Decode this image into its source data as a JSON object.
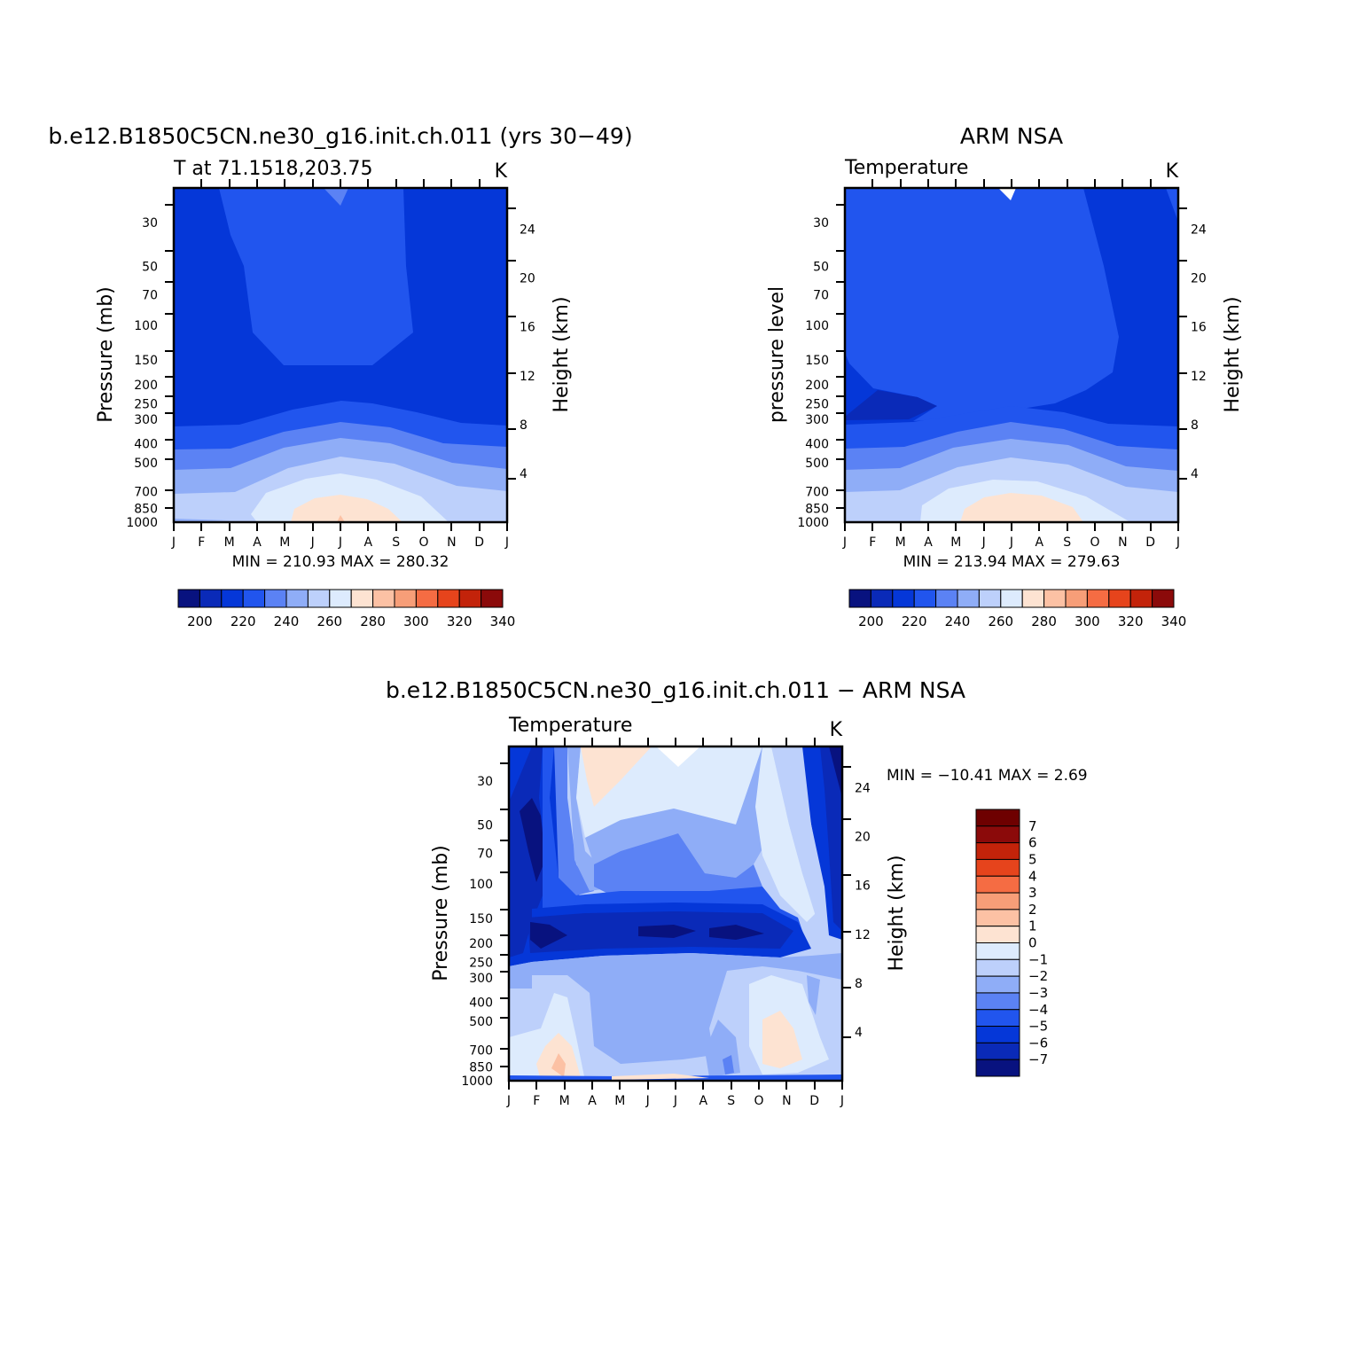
{
  "panels": [
    {
      "id": "model",
      "title": "b.e12.B1850C5CN.ne30_g16.init.ch.011 (yrs 30−49)",
      "left_string": "T at 71.1518,203.75",
      "right_string": "K",
      "ylabel_left": "Pressure (mb)",
      "ylabel_right": "Height (km)",
      "stats": "MIN = 210.93  MAX = 280.32"
    },
    {
      "id": "obs",
      "title": "ARM NSA",
      "left_string": "Temperature",
      "right_string": "K",
      "ylabel_left": "pressure level",
      "ylabel_right": "Height (km)",
      "stats": "MIN = 213.94  MAX = 279.63"
    },
    {
      "id": "diff",
      "title": "b.e12.B1850C5CN.ne30_g16.init.ch.011 − ARM NSA",
      "left_string": "Temperature",
      "right_string": "K",
      "ylabel_left": "Pressure (mb)",
      "ylabel_right": "Height (km)",
      "stats": "MIN = −10.41  MAX =    2.69"
    }
  ],
  "chart_data": [
    {
      "type": "heatmap",
      "title": "b.e12.B1850C5CN.ne30_g16.init.ch.011 (yrs 30−49)",
      "subtitle": "T at 71.1518,203.75",
      "units": "K",
      "xlabel": "",
      "ylabel": "Pressure (mb)",
      "ylabel_right": "Height (km)",
      "x": [
        "J",
        "F",
        "M",
        "A",
        "M",
        "J",
        "J",
        "A",
        "S",
        "O",
        "N",
        "D",
        "J"
      ],
      "y_pressure_ticks": [
        30,
        50,
        70,
        100,
        150,
        200,
        250,
        300,
        400,
        500,
        700,
        850,
        1000
      ],
      "y_height_ticks": [
        24,
        20,
        16,
        12,
        8,
        4
      ],
      "y_scale": "log",
      "ylim": [
        1000,
        20
      ],
      "contour_levels": [
        200,
        210,
        220,
        230,
        240,
        250,
        260,
        270,
        280,
        290,
        300,
        310,
        320,
        330,
        340
      ],
      "colorbar_labels": [
        "200",
        "220",
        "240",
        "260",
        "280",
        "300",
        "320",
        "340"
      ],
      "min": 210.93,
      "max": 280.32
    },
    {
      "type": "heatmap",
      "title": "ARM NSA",
      "subtitle": "Temperature",
      "units": "K",
      "xlabel": "",
      "ylabel": "pressure level",
      "ylabel_right": "Height (km)",
      "x": [
        "J",
        "F",
        "M",
        "A",
        "M",
        "J",
        "J",
        "A",
        "S",
        "O",
        "N",
        "D",
        "J"
      ],
      "y_pressure_ticks": [
        30,
        50,
        70,
        100,
        150,
        200,
        250,
        300,
        400,
        500,
        700,
        850,
        1000
      ],
      "y_height_ticks": [
        24,
        20,
        16,
        12,
        8,
        4
      ],
      "y_scale": "log",
      "ylim": [
        1000,
        20
      ],
      "contour_levels": [
        200,
        210,
        220,
        230,
        240,
        250,
        260,
        270,
        280,
        290,
        300,
        310,
        320,
        330,
        340
      ],
      "colorbar_labels": [
        "200",
        "220",
        "240",
        "260",
        "280",
        "300",
        "320",
        "340"
      ],
      "min": 213.94,
      "max": 279.63
    },
    {
      "type": "heatmap",
      "title": "b.e12.B1850C5CN.ne30_g16.init.ch.011 − ARM NSA",
      "subtitle": "Temperature",
      "units": "K",
      "xlabel": "",
      "ylabel": "Pressure (mb)",
      "ylabel_right": "Height (km)",
      "x": [
        "J",
        "F",
        "M",
        "A",
        "M",
        "J",
        "J",
        "A",
        "S",
        "O",
        "N",
        "D",
        "J"
      ],
      "y_pressure_ticks": [
        30,
        50,
        70,
        100,
        150,
        200,
        250,
        300,
        400,
        500,
        700,
        850,
        1000
      ],
      "y_height_ticks": [
        24,
        20,
        16,
        12,
        8,
        4
      ],
      "y_scale": "log",
      "ylim": [
        1000,
        20
      ],
      "contour_levels": [
        -7,
        -6,
        -5,
        -4,
        -3,
        -2,
        -1,
        0,
        1,
        2,
        3,
        4,
        5,
        6,
        7
      ],
      "colorbar_labels": [
        "7",
        "6",
        "5",
        "4",
        "3",
        "2",
        "1",
        "0",
        "−1",
        "−2",
        "−3",
        "−4",
        "−5",
        "−6",
        "−7"
      ],
      "min": -10.41,
      "max": 2.69
    }
  ],
  "colors": {
    "temperature_palette": [
      "#08127f",
      "#0a2ab8",
      "#0537d8",
      "#2155ee",
      "#5b82f4",
      "#8fadf7",
      "#bdd0fb",
      "#ddebfd",
      "#fde3d2",
      "#fcc1a4",
      "#f79e78",
      "#f56c43",
      "#e6441c",
      "#c3230a",
      "#8b0a0a"
    ],
    "difference_palette": [
      "#08127f",
      "#0a2ab8",
      "#0537d8",
      "#2155ee",
      "#5b82f4",
      "#8fadf7",
      "#bdd0fb",
      "#ddebfd",
      "#fde3d2",
      "#fcc1a4",
      "#f79e78",
      "#f56c43",
      "#e6441c",
      "#c3230a",
      "#8b0a0a",
      "#6e0000"
    ]
  }
}
